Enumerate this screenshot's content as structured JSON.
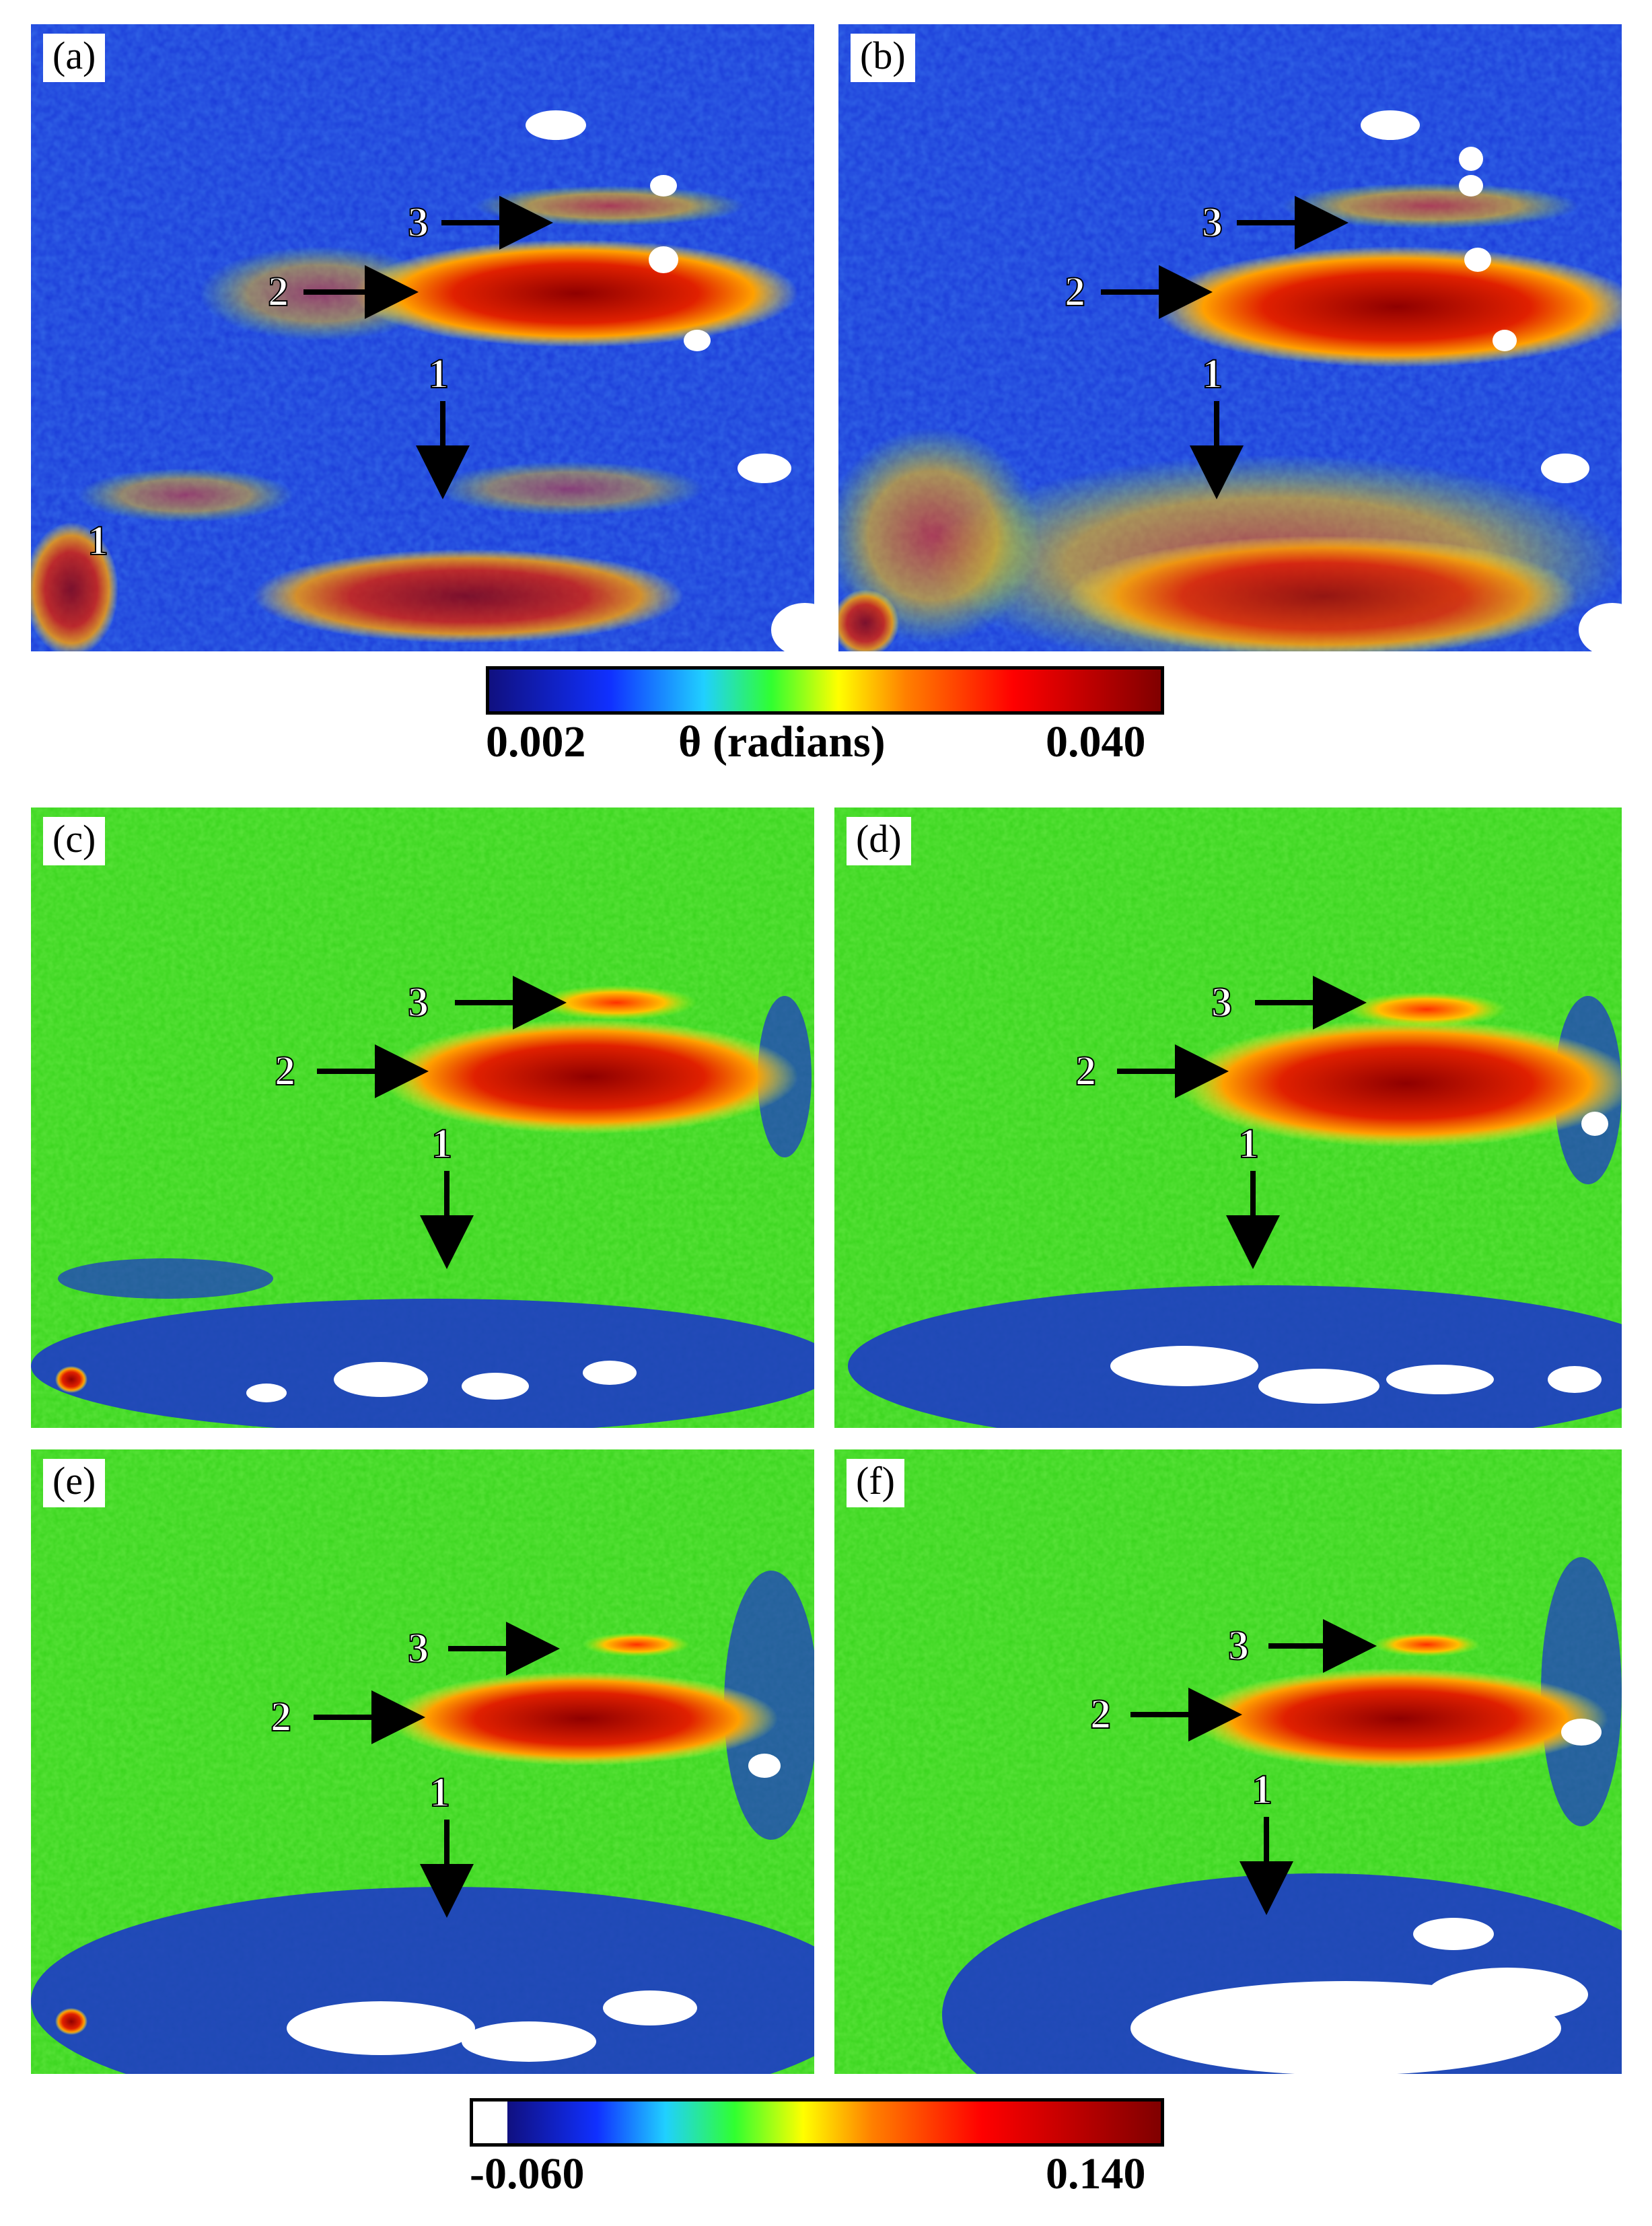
{
  "panels": {
    "a": {
      "label": "(a)"
    },
    "b": {
      "label": "(b)"
    },
    "c": {
      "label": "(c)"
    },
    "d": {
      "label": "(d)"
    },
    "e": {
      "label": "(e)"
    },
    "f": {
      "label": "(f)"
    }
  },
  "markers": [
    "1",
    "2",
    "3"
  ],
  "colorbar_top": {
    "min": "0.002",
    "title": "θ (radians)",
    "max": "0.040"
  },
  "colorbar_bottom": {
    "min": "-0.060",
    "max": "0.140"
  },
  "colors": {
    "low": "#1020c8",
    "mid": "#30d020",
    "high": "#a00000",
    "saturated": "#ffffff"
  }
}
